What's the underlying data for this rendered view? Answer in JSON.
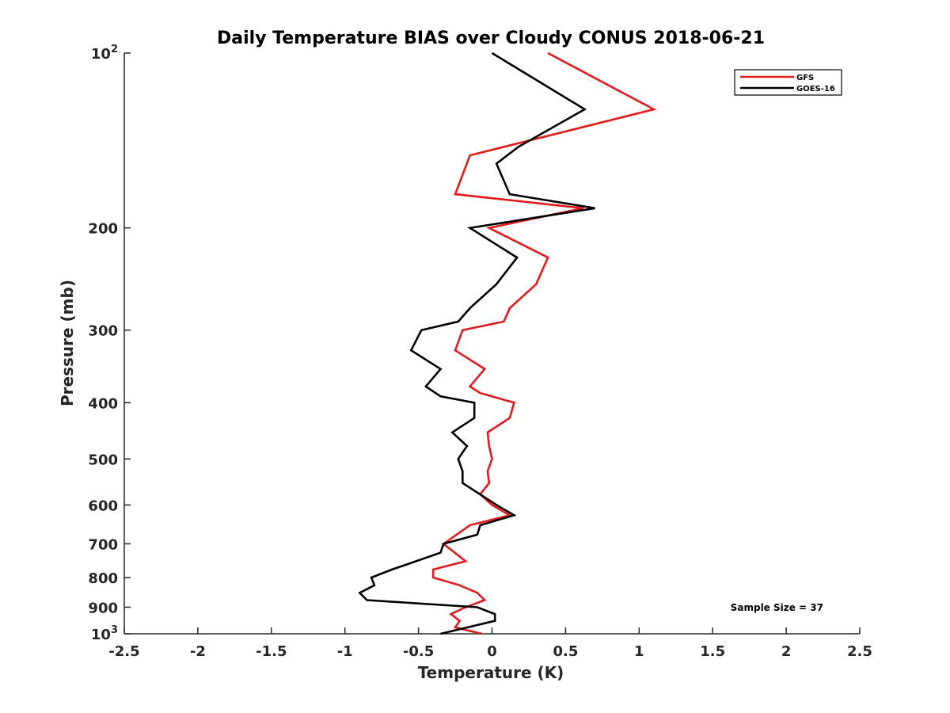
{
  "chart_data": {
    "type": "line",
    "title": "Daily Temperature BIAS over Cloudy CONUS 2018-06-21",
    "xlabel": "Temperature (K)",
    "ylabel": "Pressure (mb)",
    "xlim": [
      -2.5,
      2.5
    ],
    "ylim": [
      1000,
      100
    ],
    "y_scale": "log",
    "y_reversed": true,
    "grid": false,
    "legend_position": "top-right",
    "x_ticks": [
      {
        "value": -2.5,
        "label": "-2.5"
      },
      {
        "value": -2,
        "label": "-2"
      },
      {
        "value": -1.5,
        "label": "-1.5"
      },
      {
        "value": -1,
        "label": "-1"
      },
      {
        "value": -0.5,
        "label": "-0.5"
      },
      {
        "value": 0,
        "label": "0"
      },
      {
        "value": 0.5,
        "label": "0.5"
      },
      {
        "value": 1,
        "label": "1"
      },
      {
        "value": 1.5,
        "label": "1.5"
      },
      {
        "value": 2,
        "label": "2"
      },
      {
        "value": 2.5,
        "label": "2.5"
      }
    ],
    "y_ticks": [
      {
        "value": 100,
        "label": "10",
        "sup": "2"
      },
      {
        "value": 200,
        "label": "200",
        "sup": ""
      },
      {
        "value": 300,
        "label": "300",
        "sup": ""
      },
      {
        "value": 400,
        "label": "400",
        "sup": ""
      },
      {
        "value": 500,
        "label": "500",
        "sup": ""
      },
      {
        "value": 600,
        "label": "600",
        "sup": ""
      },
      {
        "value": 700,
        "label": "700",
        "sup": ""
      },
      {
        "value": 800,
        "label": "800",
        "sup": ""
      },
      {
        "value": 900,
        "label": "900",
        "sup": ""
      },
      {
        "value": 1000,
        "label": "10",
        "sup": "3"
      }
    ],
    "series": [
      {
        "name": "GFS",
        "color": "#e31a1c",
        "points": [
          {
            "x": 0.38,
            "p": 100
          },
          {
            "x": 1.1,
            "p": 125
          },
          {
            "x": -0.15,
            "p": 150
          },
          {
            "x": -0.25,
            "p": 175
          },
          {
            "x": 0.62,
            "p": 185
          },
          {
            "x": -0.02,
            "p": 200
          },
          {
            "x": 0.38,
            "p": 225
          },
          {
            "x": 0.3,
            "p": 250
          },
          {
            "x": 0.12,
            "p": 275
          },
          {
            "x": 0.08,
            "p": 290
          },
          {
            "x": -0.2,
            "p": 300
          },
          {
            "x": -0.25,
            "p": 325
          },
          {
            "x": -0.05,
            "p": 350
          },
          {
            "x": -0.15,
            "p": 375
          },
          {
            "x": -0.08,
            "p": 385
          },
          {
            "x": 0.15,
            "p": 400
          },
          {
            "x": 0.12,
            "p": 425
          },
          {
            "x": -0.03,
            "p": 450
          },
          {
            "x": -0.02,
            "p": 475
          },
          {
            "x": 0.0,
            "p": 500
          },
          {
            "x": -0.03,
            "p": 525
          },
          {
            "x": -0.02,
            "p": 550
          },
          {
            "x": -0.08,
            "p": 575
          },
          {
            "x": 0.0,
            "p": 600
          },
          {
            "x": 0.12,
            "p": 625
          },
          {
            "x": -0.15,
            "p": 650
          },
          {
            "x": -0.33,
            "p": 700
          },
          {
            "x": -0.18,
            "p": 750
          },
          {
            "x": -0.4,
            "p": 775
          },
          {
            "x": -0.4,
            "p": 800
          },
          {
            "x": -0.22,
            "p": 825
          },
          {
            "x": -0.1,
            "p": 850
          },
          {
            "x": -0.05,
            "p": 875
          },
          {
            "x": -0.18,
            "p": 900
          },
          {
            "x": -0.28,
            "p": 925
          },
          {
            "x": -0.22,
            "p": 950
          },
          {
            "x": -0.25,
            "p": 975
          },
          {
            "x": -0.07,
            "p": 1000
          }
        ]
      },
      {
        "name": "GOES-16",
        "color": "#000000",
        "points": [
          {
            "x": 0.0,
            "p": 100
          },
          {
            "x": 0.63,
            "p": 125
          },
          {
            "x": 0.18,
            "p": 145
          },
          {
            "x": 0.03,
            "p": 155
          },
          {
            "x": 0.12,
            "p": 175
          },
          {
            "x": 0.7,
            "p": 185
          },
          {
            "x": -0.15,
            "p": 200
          },
          {
            "x": 0.17,
            "p": 225
          },
          {
            "x": 0.03,
            "p": 250
          },
          {
            "x": -0.15,
            "p": 275
          },
          {
            "x": -0.23,
            "p": 290
          },
          {
            "x": -0.48,
            "p": 300
          },
          {
            "x": -0.55,
            "p": 325
          },
          {
            "x": -0.35,
            "p": 350
          },
          {
            "x": -0.45,
            "p": 375
          },
          {
            "x": -0.35,
            "p": 390
          },
          {
            "x": -0.12,
            "p": 400
          },
          {
            "x": -0.12,
            "p": 425
          },
          {
            "x": -0.27,
            "p": 450
          },
          {
            "x": -0.17,
            "p": 475
          },
          {
            "x": -0.23,
            "p": 500
          },
          {
            "x": -0.2,
            "p": 525
          },
          {
            "x": -0.2,
            "p": 550
          },
          {
            "x": 0.03,
            "p": 600
          },
          {
            "x": 0.15,
            "p": 625
          },
          {
            "x": -0.08,
            "p": 650
          },
          {
            "x": -0.1,
            "p": 675
          },
          {
            "x": -0.33,
            "p": 700
          },
          {
            "x": -0.35,
            "p": 725
          },
          {
            "x": -0.68,
            "p": 775
          },
          {
            "x": -0.82,
            "p": 800
          },
          {
            "x": -0.8,
            "p": 825
          },
          {
            "x": -0.9,
            "p": 850
          },
          {
            "x": -0.85,
            "p": 875
          },
          {
            "x": -0.1,
            "p": 900
          },
          {
            "x": 0.02,
            "p": 925
          },
          {
            "x": 0.02,
            "p": 950
          },
          {
            "x": -0.35,
            "p": 1000
          }
        ]
      }
    ],
    "annotations": [
      {
        "text": "Sample Size = 37"
      }
    ]
  }
}
